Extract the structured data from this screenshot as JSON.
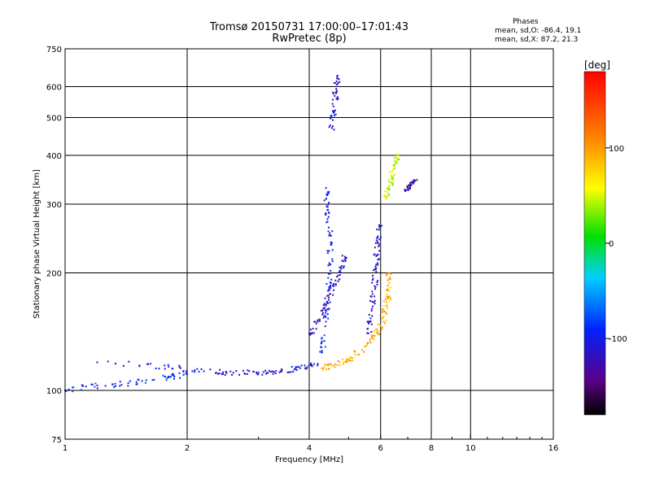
{
  "chart_data": {
    "type": "scatter",
    "title": "Tromsø 20150731 17:00:00–17:01:43",
    "subtitle": "RwPretec (8p)",
    "xlabel": "Frequency [MHz]",
    "ylabel": "Stationary phase Virtual Height [km]",
    "x_scale": "log",
    "y_scale": "log",
    "xlim": [
      1,
      16
    ],
    "ylim": [
      75,
      750
    ],
    "x_ticks": [
      1,
      2,
      4,
      6,
      8,
      10,
      16
    ],
    "y_ticks": [
      75,
      100,
      200,
      300,
      400,
      500,
      600,
      750
    ],
    "grid": true,
    "phase_box": {
      "title": "Phases",
      "line_o": "mean, sd,O: -86.4, 19.1",
      "line_x": "mean, sd,X:  87.2, 21.3"
    },
    "colorbar": {
      "label": "[deg]",
      "ticks": [
        100,
        0,
        -100
      ],
      "range": [
        -180,
        180
      ]
    },
    "traces": [
      {
        "name": "",
        "phase_mean": -108,
        "points": [
          [
            1.2,
            118
          ],
          [
            1.8,
            115
          ],
          [
            2.2,
            112
          ],
          [
            2.6,
            111
          ],
          [
            3.0,
            111
          ],
          [
            3.4,
            112
          ],
          [
            3.8,
            114
          ],
          [
            4.2,
            117
          ]
        ]
      },
      {
        "name": "",
        "phase_mean": -95,
        "points": [
          [
            4.3,
            125
          ],
          [
            4.4,
            150
          ],
          [
            4.45,
            180
          ],
          [
            4.5,
            210
          ],
          [
            4.5,
            250
          ],
          [
            4.45,
            290
          ],
          [
            4.4,
            330
          ]
        ]
      },
      {
        "name": "",
        "phase_mean": -115,
        "points": [
          [
            4.0,
            140
          ],
          [
            4.2,
            150
          ],
          [
            4.4,
            165
          ],
          [
            4.6,
            185
          ],
          [
            4.8,
            205
          ],
          [
            4.9,
            220
          ]
        ]
      },
      {
        "name": "",
        "phase_mean": -110,
        "points": [
          [
            5.6,
            140
          ],
          [
            5.7,
            160
          ],
          [
            5.8,
            185
          ],
          [
            5.85,
            210
          ],
          [
            5.9,
            240
          ],
          [
            5.95,
            265
          ]
        ]
      },
      {
        "name": "",
        "phase_mean": 95,
        "points": [
          [
            4.3,
            114
          ],
          [
            4.6,
            116
          ],
          [
            5.0,
            120
          ],
          [
            5.4,
            127
          ],
          [
            5.8,
            138
          ],
          [
            6.1,
            150
          ],
          [
            6.2,
            165
          ],
          [
            6.3,
            180
          ],
          [
            6.3,
            200
          ]
        ]
      },
      {
        "name": "",
        "phase_mean": 50,
        "points": [
          [
            6.2,
            310
          ],
          [
            6.3,
            330
          ],
          [
            6.4,
            350
          ],
          [
            6.5,
            375
          ],
          [
            6.6,
            400
          ]
        ]
      },
      {
        "name": "",
        "phase_mean": -110,
        "points": [
          [
            4.55,
            470
          ],
          [
            4.6,
            520
          ],
          [
            4.65,
            580
          ],
          [
            4.7,
            640
          ]
        ]
      },
      {
        "name": "",
        "phase_mean": -90,
        "points": [
          [
            1.0,
            100
          ],
          [
            1.2,
            103
          ],
          [
            1.5,
            105
          ],
          [
            1.8,
            108
          ],
          [
            2.0,
            110
          ]
        ]
      },
      {
        "name": "",
        "phase_mean": -130,
        "points": [
          [
            6.9,
            325
          ],
          [
            7.1,
            335
          ],
          [
            7.3,
            345
          ]
        ]
      }
    ]
  }
}
